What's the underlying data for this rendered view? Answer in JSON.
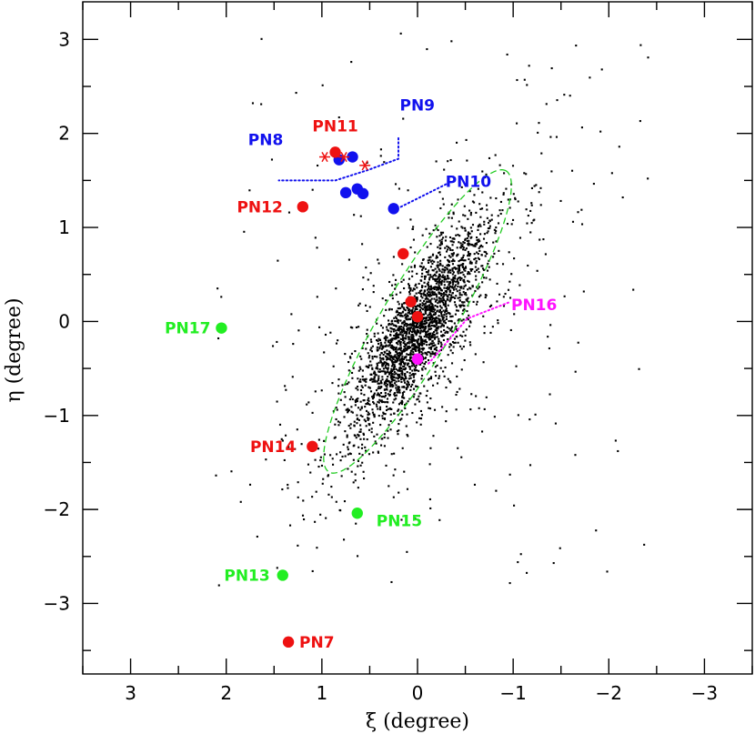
{
  "chart_data": {
    "type": "scatter",
    "title": "",
    "xlabel": "ξ (degree)",
    "ylabel": "η (degree)",
    "xlim": [
      3.5,
      -3.5
    ],
    "ylim": [
      -3.75,
      3.4
    ],
    "x_reversed": true,
    "x_ticks": [
      3,
      2,
      1,
      0,
      -1,
      -2,
      -3
    ],
    "x_tick_labels": [
      "3",
      "2",
      "1",
      "0",
      "−1",
      "−2",
      "−3"
    ],
    "y_ticks": [
      3,
      2,
      1,
      0,
      -1,
      -2,
      -3
    ],
    "y_tick_labels": [
      "3",
      "2",
      "1",
      "0",
      "−1",
      "−2",
      "−3"
    ],
    "grid": false,
    "background_stars": {
      "description": "dense cloud of small black points elongated along the galaxy major axis",
      "color": "#000000",
      "core_center": [
        0.0,
        -0.1
      ],
      "count": 2600
    },
    "ellipse": {
      "center": [
        0.0,
        0.0
      ],
      "semi_major": 1.85,
      "semi_minor": 0.38,
      "tilt_deg_from_eta_axis_toward_neg_xi": 30,
      "style": "dashed",
      "color": "#22cc22"
    },
    "planetary_nebulae": [
      {
        "label": "PN7",
        "xi": 1.35,
        "eta": -3.41,
        "color": "red",
        "label_side": "right"
      },
      {
        "label": "PN8",
        "xi": 0.82,
        "eta": 1.72,
        "color": "blue",
        "label_side": "left"
      },
      {
        "label": "PN9",
        "xi": 0.68,
        "eta": 1.75,
        "color": "blue",
        "label_side": "above-right"
      },
      {
        "label": "PN10",
        "xi": 0.25,
        "eta": 1.2,
        "color": "blue",
        "label_side": "right"
      },
      {
        "label": "PN11",
        "xi": 0.86,
        "eta": 1.8,
        "color": "red",
        "label_side": "above"
      },
      {
        "label": "PN12",
        "xi": 1.2,
        "eta": 1.22,
        "color": "red",
        "label_side": "left"
      },
      {
        "label": "PN13",
        "xi": 1.41,
        "eta": -2.7,
        "color": "green",
        "label_side": "left"
      },
      {
        "label": "PN14",
        "xi": 1.1,
        "eta": -1.33,
        "color": "red",
        "label_side": "left"
      },
      {
        "label": "PN15",
        "xi": 0.63,
        "eta": -2.04,
        "color": "green",
        "label_side": "right"
      },
      {
        "label": "PN16",
        "xi": 0.0,
        "eta": -0.4,
        "color": "magenta",
        "label_side": "right"
      },
      {
        "label": "PN17",
        "xi": 2.05,
        "eta": -0.07,
        "color": "green",
        "label_side": "left"
      }
    ],
    "unlabeled_markers": [
      {
        "xi": 0.75,
        "eta": 1.37,
        "color": "blue"
      },
      {
        "xi": 0.63,
        "eta": 1.41,
        "color": "blue"
      },
      {
        "xi": 0.57,
        "eta": 1.36,
        "color": "blue"
      },
      {
        "xi": 0.15,
        "eta": 0.72,
        "color": "red"
      },
      {
        "xi": 0.07,
        "eta": 0.21,
        "color": "red"
      },
      {
        "xi": 0.0,
        "eta": 0.05,
        "color": "red"
      }
    ],
    "asterisks": [
      {
        "xi": 0.97,
        "eta": 1.75,
        "color": "red"
      },
      {
        "xi": 0.77,
        "eta": 1.75,
        "color": "red"
      },
      {
        "xi": 0.55,
        "eta": 1.66,
        "color": "red"
      }
    ],
    "colors": {
      "red": "#ee1111",
      "blue": "#1111ee",
      "green": "#22ee22",
      "magenta": "#ff11ff",
      "star": "#000000"
    }
  }
}
